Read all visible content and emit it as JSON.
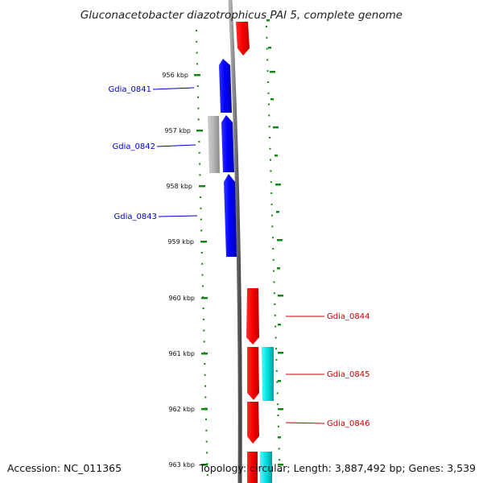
{
  "title": "Gluconacetobacter diazotrophicus PAI 5, complete genome",
  "footer": {
    "accession": "Accession: NC_011365",
    "summary": "Topology: circular; Length: 3,887,492 bp; Genes: 3,539"
  },
  "colors": {
    "reverse_gene": "#0000ff",
    "forward_gene": "#ff0000",
    "reverse_feature": "#b4b4b4",
    "forward_feature": "#00e5e5",
    "backbone": "#808080",
    "tick": "#118811"
  },
  "kbp_labels": [
    "956 kbp",
    "957 kbp",
    "958 kbp",
    "959 kbp",
    "960 kbp",
    "961 kbp",
    "962 kbp",
    "963 kbp"
  ],
  "genes": [
    {
      "name": "Gdia_0841",
      "strand": "reverse"
    },
    {
      "name": "Gdia_0842",
      "strand": "reverse"
    },
    {
      "name": "Gdia_0843",
      "strand": "reverse"
    },
    {
      "name": "Gdia_0844",
      "strand": "forward"
    },
    {
      "name": "Gdia_0845",
      "strand": "forward"
    },
    {
      "name": "Gdia_0846",
      "strand": "forward"
    }
  ]
}
